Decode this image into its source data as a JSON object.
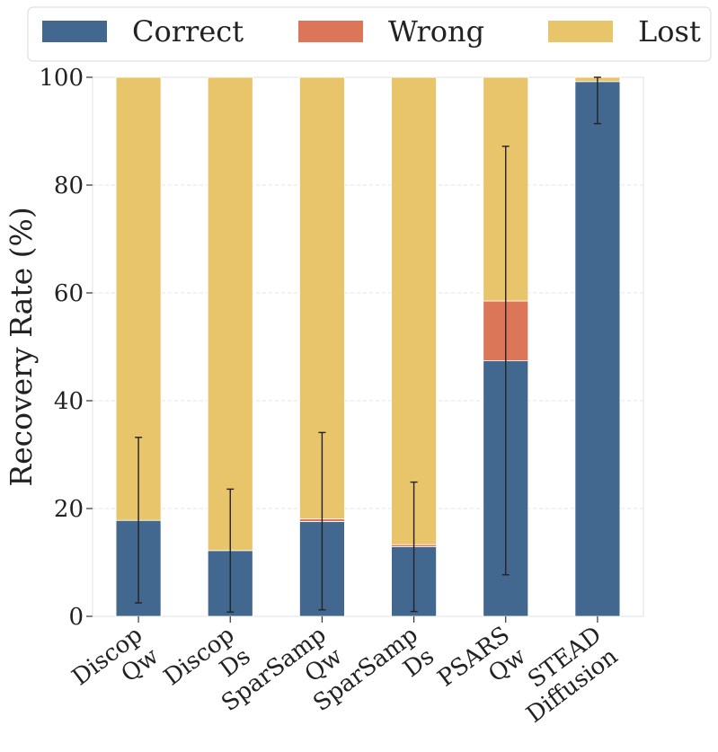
{
  "chart_data": {
    "type": "bar",
    "stacked": true,
    "ylabel": "Recovery Rate (%)",
    "xlabel": "",
    "ylim": [
      0,
      100
    ],
    "yticks": [
      0,
      20,
      40,
      60,
      80,
      100
    ],
    "grid": "y dashed",
    "legend_position": "top",
    "categories": [
      [
        "Discop",
        "Qw"
      ],
      [
        "Discop",
        "Ds"
      ],
      [
        "SparSamp",
        "Qw"
      ],
      [
        "SparSamp",
        "Ds"
      ],
      [
        "PSARS",
        "Qw"
      ],
      [
        "STEAD",
        "Diffusion"
      ]
    ],
    "series": [
      {
        "name": "Correct",
        "color": "#436890",
        "values": [
          17.8,
          12.2,
          17.6,
          12.9,
          47.4,
          99.2
        ]
      },
      {
        "name": "Wrong",
        "color": "#dc7658",
        "values": [
          0.0,
          0.0,
          0.5,
          0.4,
          11.1,
          0.0
        ]
      },
      {
        "name": "Lost",
        "color": "#e8c46a",
        "values": [
          82.2,
          87.8,
          81.9,
          86.7,
          41.5,
          0.8
        ]
      }
    ],
    "error_bars": [
      {
        "low": 2.5,
        "high": 33.2
      },
      {
        "low": 0.8,
        "high": 23.6
      },
      {
        "low": 1.2,
        "high": 34.1
      },
      {
        "low": 0.9,
        "high": 24.9
      },
      {
        "low": 7.7,
        "high": 87.2
      },
      {
        "low": 91.4,
        "high": 100.0
      }
    ]
  }
}
